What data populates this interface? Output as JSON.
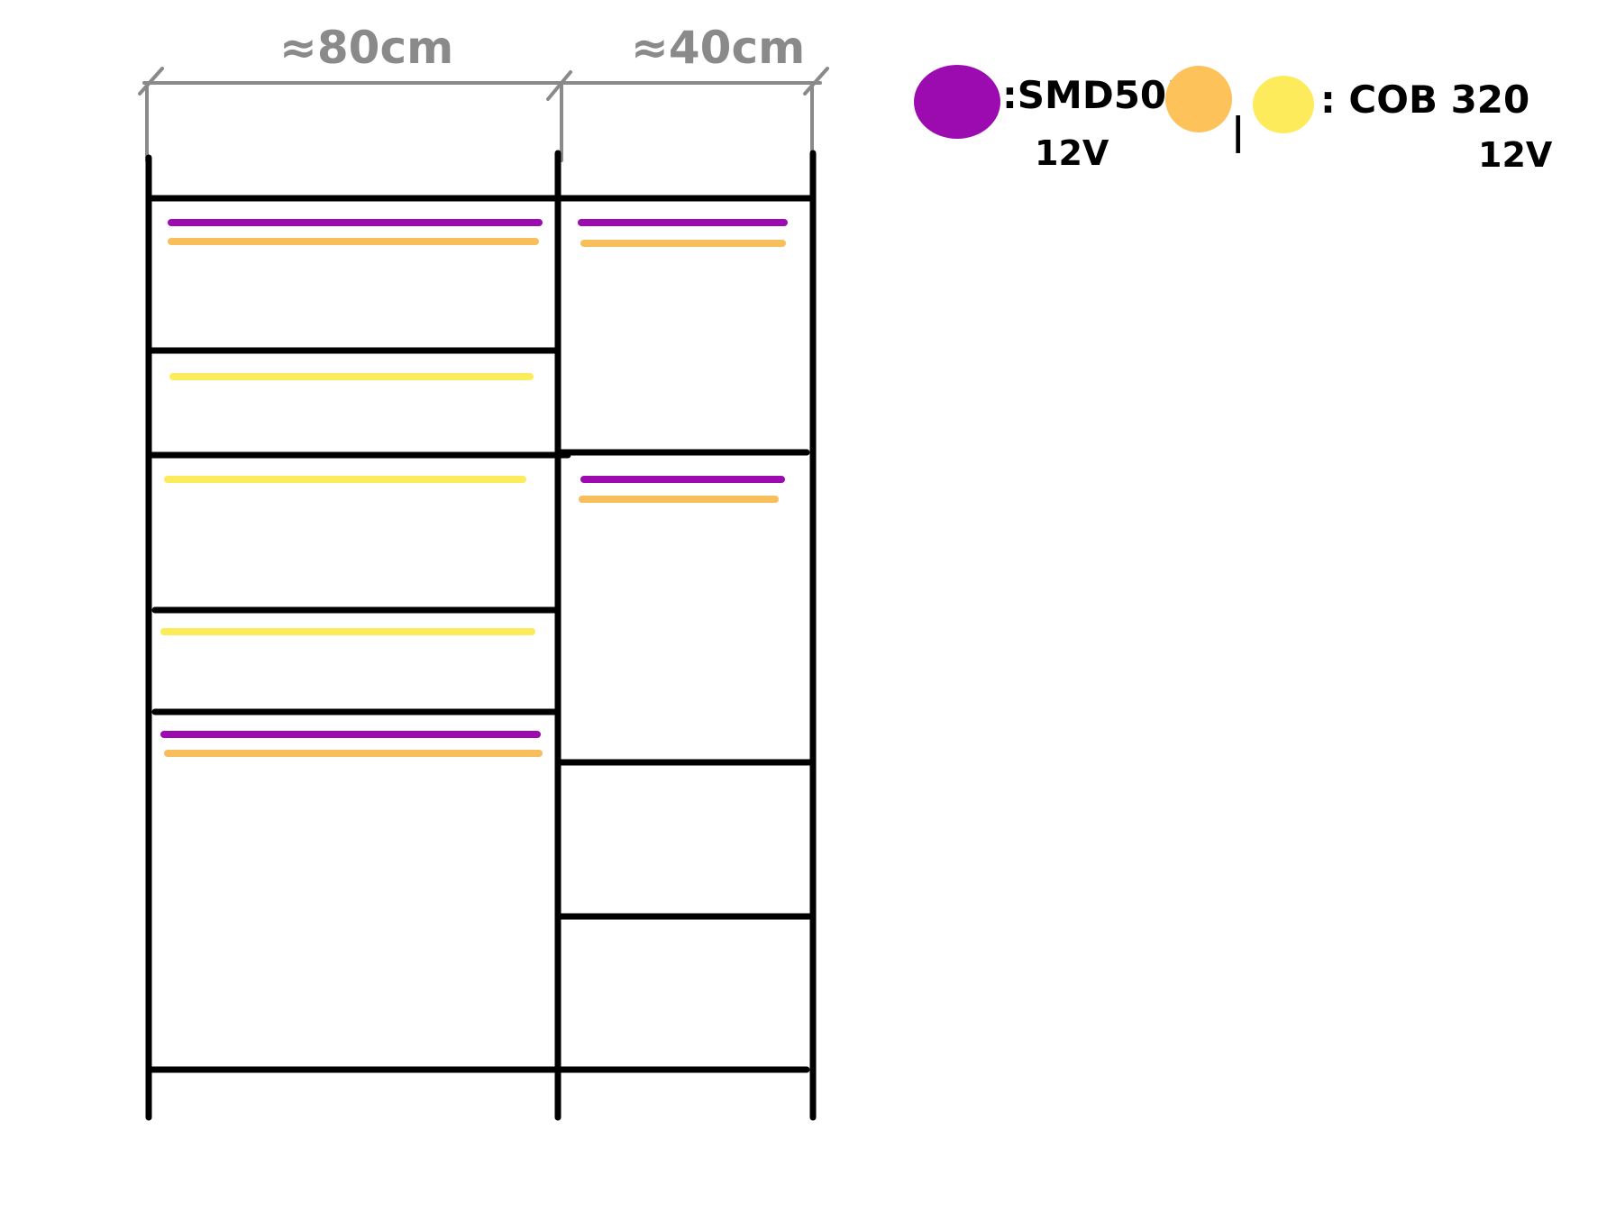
{
  "dimensions": {
    "left_width": "≈80cm",
    "right_width": "≈40cm"
  },
  "legend": {
    "smd": {
      "label": ":SMD5050",
      "voltage": "12V",
      "color": "#9B0BB0"
    },
    "cob": {
      "separator": "|",
      "label": ": COB  320",
      "voltage": "12V",
      "color_orange": "#FDC35A",
      "color_yellow": "#FDEB5C"
    }
  },
  "colors": {
    "frame": "#000000",
    "dimension_lines": "#8a8a8a",
    "purple_strip": "#9B0BB0",
    "orange_strip": "#F8BE5C",
    "yellow_strip": "#FCEB5A"
  }
}
